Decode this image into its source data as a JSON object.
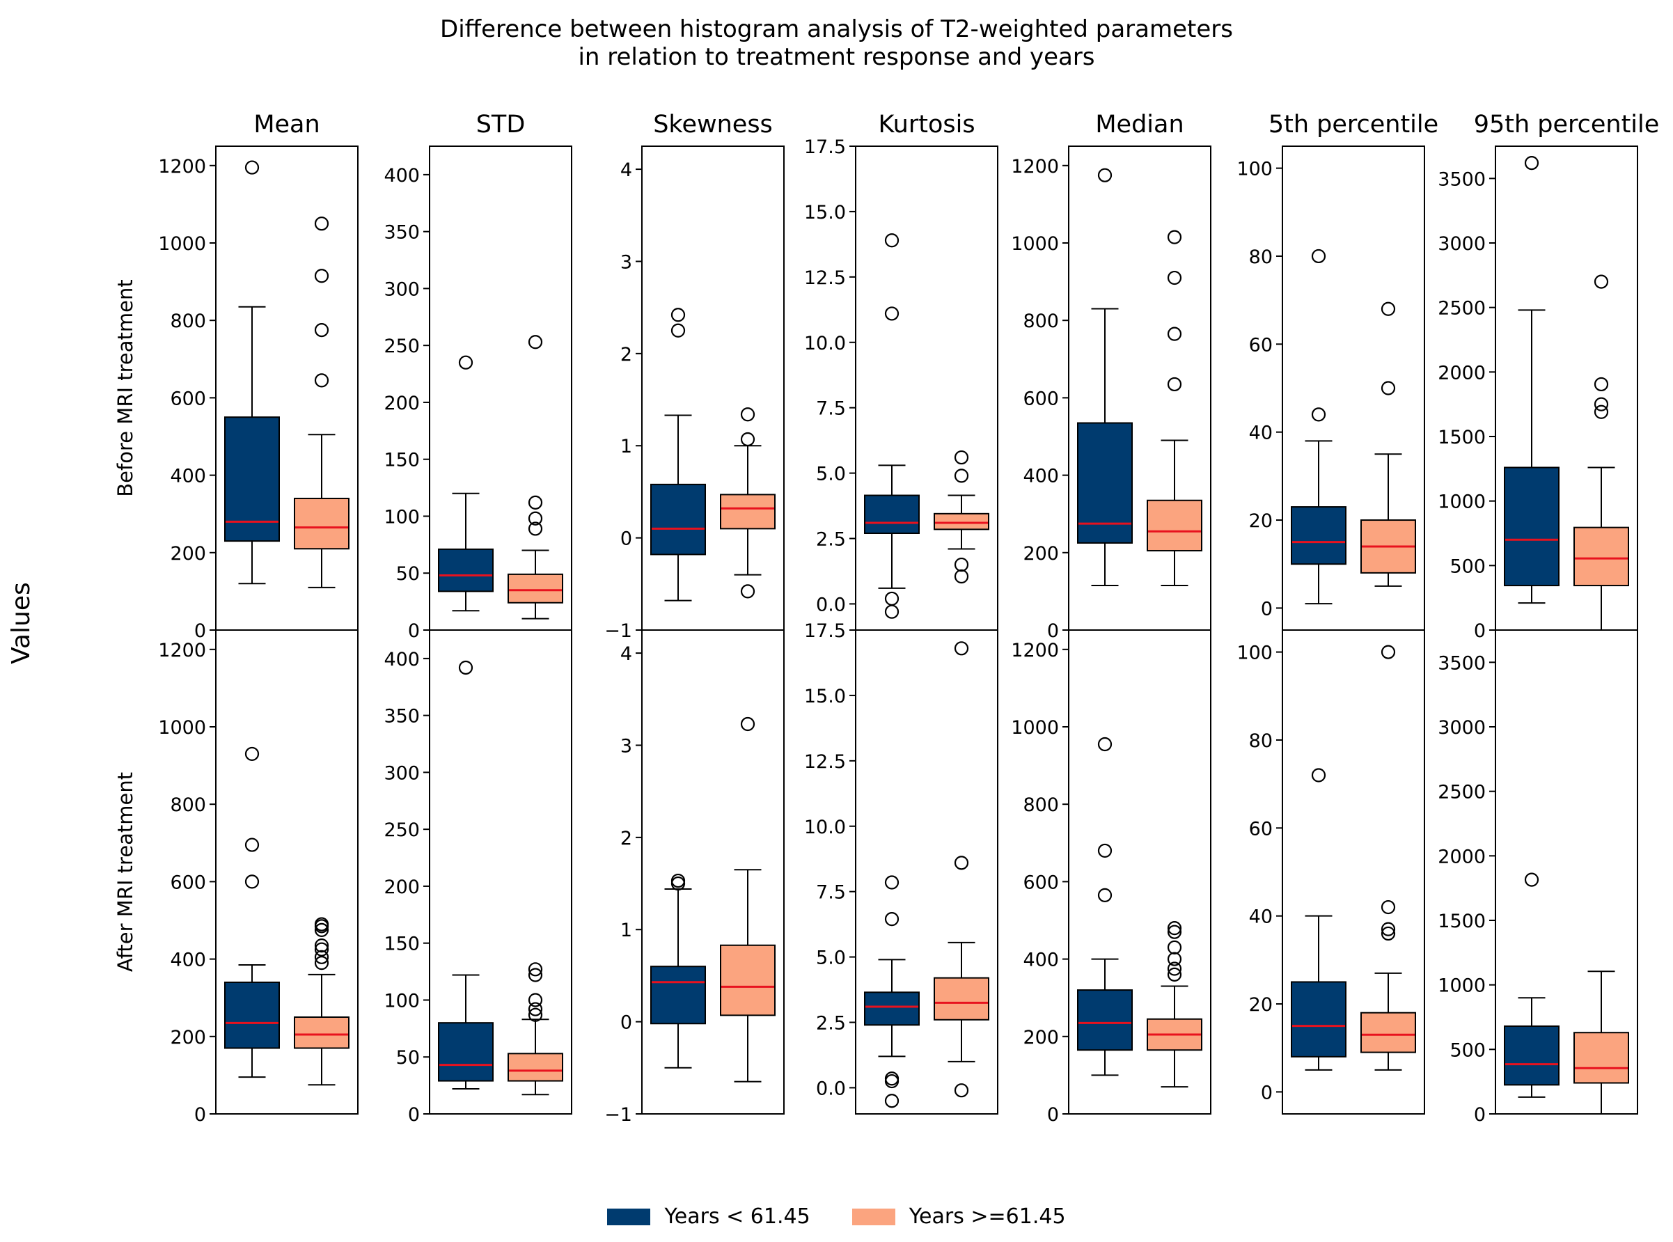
{
  "chart_data": {
    "type": "box",
    "title_line1": "Difference between histogram analysis of T2-weighted parameters",
    "title_line2": "in relation to treatment response and years",
    "ylabel": "Values",
    "row_labels": [
      "Before MRI treatment",
      "After MRI treatment"
    ],
    "colors": {
      "young": "#003b6f",
      "old": "#fba47f",
      "median": "#e8121e"
    },
    "legend": [
      {
        "name": "Years < 61.45",
        "key": "young"
      },
      {
        "name": "Years >=61.45",
        "key": "old"
      }
    ],
    "panels": [
      {
        "param": "Mean",
        "ylim": [
          0,
          1250
        ],
        "ticks": [
          0,
          200,
          400,
          600,
          800,
          1000,
          1200
        ],
        "tick_labels": [
          "0",
          "200",
          "400",
          "600",
          "800",
          "1000",
          "1200"
        ],
        "before": [
          {
            "group": "young",
            "whislo": 120,
            "q1": 230,
            "med": 280,
            "q3": 550,
            "whishi": 835,
            "fliers": [
              1195
            ]
          },
          {
            "group": "old",
            "whislo": 110,
            "q1": 210,
            "med": 265,
            "q3": 340,
            "whishi": 505,
            "fliers": [
              645,
              775,
              915,
              1050
            ]
          }
        ],
        "after": [
          {
            "group": "young",
            "whislo": 95,
            "q1": 170,
            "med": 235,
            "q3": 340,
            "whishi": 385,
            "fliers": [
              600,
              695,
              930
            ]
          },
          {
            "group": "old",
            "whislo": 75,
            "q1": 170,
            "med": 205,
            "q3": 250,
            "whishi": 360,
            "fliers": [
              390,
              405,
              425,
              435,
              475,
              485,
              490
            ]
          }
        ]
      },
      {
        "param": "STD",
        "ylim": [
          0,
          425
        ],
        "ticks": [
          0,
          50,
          100,
          150,
          200,
          250,
          300,
          350,
          400
        ],
        "tick_labels": [
          "0",
          "50",
          "100",
          "150",
          "200",
          "250",
          "300",
          "350",
          "400"
        ],
        "before": [
          {
            "group": "young",
            "whislo": 17,
            "q1": 34,
            "med": 48,
            "q3": 71,
            "whishi": 120,
            "fliers": [
              235
            ]
          },
          {
            "group": "old",
            "whislo": 10,
            "q1": 24,
            "med": 35,
            "q3": 49,
            "whishi": 70,
            "fliers": [
              89,
              98,
              112,
              253
            ]
          }
        ],
        "after": [
          {
            "group": "young",
            "whislo": 22,
            "q1": 29,
            "med": 43,
            "q3": 80,
            "whishi": 122,
            "fliers": [
              392
            ]
          },
          {
            "group": "old",
            "whislo": 17,
            "q1": 29,
            "med": 38,
            "q3": 53,
            "whishi": 83,
            "fliers": [
              87,
              92,
              100,
              122,
              127
            ]
          }
        ]
      },
      {
        "param": "Skewness",
        "ylim": [
          -1,
          4.25
        ],
        "ticks": [
          -1,
          0,
          1,
          2,
          3,
          4
        ],
        "tick_labels": [
          "−1",
          "0",
          "1",
          "2",
          "3",
          "4"
        ],
        "before": [
          {
            "group": "young",
            "whislo": -0.68,
            "q1": -0.18,
            "med": 0.1,
            "q3": 0.58,
            "whishi": 1.33,
            "fliers": [
              2.25,
              2.42
            ]
          },
          {
            "group": "old",
            "whislo": -0.4,
            "q1": 0.1,
            "med": 0.32,
            "q3": 0.47,
            "whishi": 1.0,
            "fliers": [
              -0.58,
              1.07,
              1.34
            ]
          }
        ],
        "after": [
          {
            "group": "young",
            "whislo": -0.5,
            "q1": -0.02,
            "med": 0.43,
            "q3": 0.6,
            "whishi": 1.44,
            "fliers": [
              1.5,
              1.53
            ]
          },
          {
            "group": "old",
            "whislo": -0.65,
            "q1": 0.07,
            "med": 0.38,
            "q3": 0.83,
            "whishi": 1.65,
            "fliers": [
              3.23
            ]
          }
        ]
      },
      {
        "param": "Kurtosis",
        "ylim": [
          -1,
          17.5
        ],
        "ticks": [
          0,
          2.5,
          5,
          7.5,
          10,
          12.5,
          15,
          17.5
        ],
        "tick_labels": [
          "0.0",
          "2.5",
          "5.0",
          "7.5",
          "10.0",
          "12.5",
          "15.0",
          "17.5"
        ],
        "before": [
          {
            "group": "young",
            "whislo": 0.6,
            "q1": 2.7,
            "med": 3.1,
            "q3": 4.15,
            "whishi": 5.3,
            "fliers": [
              -0.3,
              0.2,
              11.1,
              13.9
            ]
          },
          {
            "group": "old",
            "whislo": 2.1,
            "q1": 2.85,
            "med": 3.1,
            "q3": 3.45,
            "whishi": 4.15,
            "fliers": [
              1.05,
              1.5,
              4.9,
              5.6
            ]
          }
        ],
        "after": [
          {
            "group": "young",
            "whislo": 1.2,
            "q1": 2.4,
            "med": 3.1,
            "q3": 3.65,
            "whishi": 4.9,
            "fliers": [
              -0.5,
              0.25,
              0.35,
              6.45,
              7.85
            ]
          },
          {
            "group": "old",
            "whislo": 1.0,
            "q1": 2.6,
            "med": 3.25,
            "q3": 4.2,
            "whishi": 5.55,
            "fliers": [
              -0.1,
              8.6,
              16.8
            ]
          }
        ]
      },
      {
        "param": "Median",
        "ylim": [
          0,
          1250
        ],
        "ticks": [
          0,
          200,
          400,
          600,
          800,
          1000,
          1200
        ],
        "tick_labels": [
          "0",
          "200",
          "400",
          "600",
          "800",
          "1000",
          "1200"
        ],
        "before": [
          {
            "group": "young",
            "whislo": 115,
            "q1": 225,
            "med": 275,
            "q3": 535,
            "whishi": 830,
            "fliers": [
              1175
            ]
          },
          {
            "group": "old",
            "whislo": 115,
            "q1": 205,
            "med": 255,
            "q3": 335,
            "whishi": 490,
            "fliers": [
              635,
              765,
              910,
              1015
            ]
          }
        ],
        "after": [
          {
            "group": "young",
            "whislo": 100,
            "q1": 165,
            "med": 235,
            "q3": 320,
            "whishi": 400,
            "fliers": [
              565,
              680,
              955
            ]
          },
          {
            "group": "old",
            "whislo": 70,
            "q1": 165,
            "med": 205,
            "q3": 245,
            "whishi": 330,
            "fliers": [
              360,
              375,
              400,
              430,
              470,
              480
            ]
          }
        ]
      },
      {
        "param": "5th percentile",
        "ylim": [
          -5,
          105
        ],
        "ticks": [
          0,
          20,
          40,
          60,
          80,
          100
        ],
        "tick_labels": [
          "0",
          "20",
          "40",
          "60",
          "80",
          "100"
        ],
        "before": [
          {
            "group": "young",
            "whislo": 1,
            "q1": 10,
            "med": 15,
            "q3": 23,
            "whishi": 38,
            "fliers": [
              44,
              80
            ]
          },
          {
            "group": "old",
            "whislo": 5,
            "q1": 8,
            "med": 14,
            "q3": 20,
            "whishi": 35,
            "fliers": [
              50,
              68
            ]
          }
        ],
        "after": [
          {
            "group": "young",
            "whislo": 5,
            "q1": 8,
            "med": 15,
            "q3": 25,
            "whishi": 40,
            "fliers": [
              72
            ]
          },
          {
            "group": "old",
            "whislo": 5,
            "q1": 9,
            "med": 13,
            "q3": 18,
            "whishi": 27,
            "fliers": [
              36,
              37,
              42,
              100
            ]
          }
        ]
      },
      {
        "param": "95th percentile",
        "ylim": [
          0,
          3750
        ],
        "ticks": [
          0,
          500,
          1000,
          1500,
          2000,
          2500,
          3000,
          3500
        ],
        "tick_labels": [
          "0",
          "500",
          "1000",
          "1500",
          "2000",
          "2500",
          "3000",
          "3500"
        ],
        "before": [
          {
            "group": "young",
            "whislo": 210,
            "q1": 345,
            "med": 700,
            "q3": 1260,
            "whishi": 2480,
            "fliers": [
              3620
            ]
          },
          {
            "group": "old",
            "whislo": 0,
            "q1": 345,
            "med": 555,
            "q3": 795,
            "whishi": 1260,
            "fliers": [
              1690,
              1750,
              1905,
              2700
            ]
          }
        ],
        "after": [
          {
            "group": "young",
            "whislo": 130,
            "q1": 225,
            "med": 385,
            "q3": 680,
            "whishi": 900,
            "fliers": [
              1815
            ]
          },
          {
            "group": "old",
            "whislo": 0,
            "q1": 240,
            "med": 355,
            "q3": 630,
            "whishi": 1105,
            "fliers": []
          }
        ]
      }
    ]
  }
}
